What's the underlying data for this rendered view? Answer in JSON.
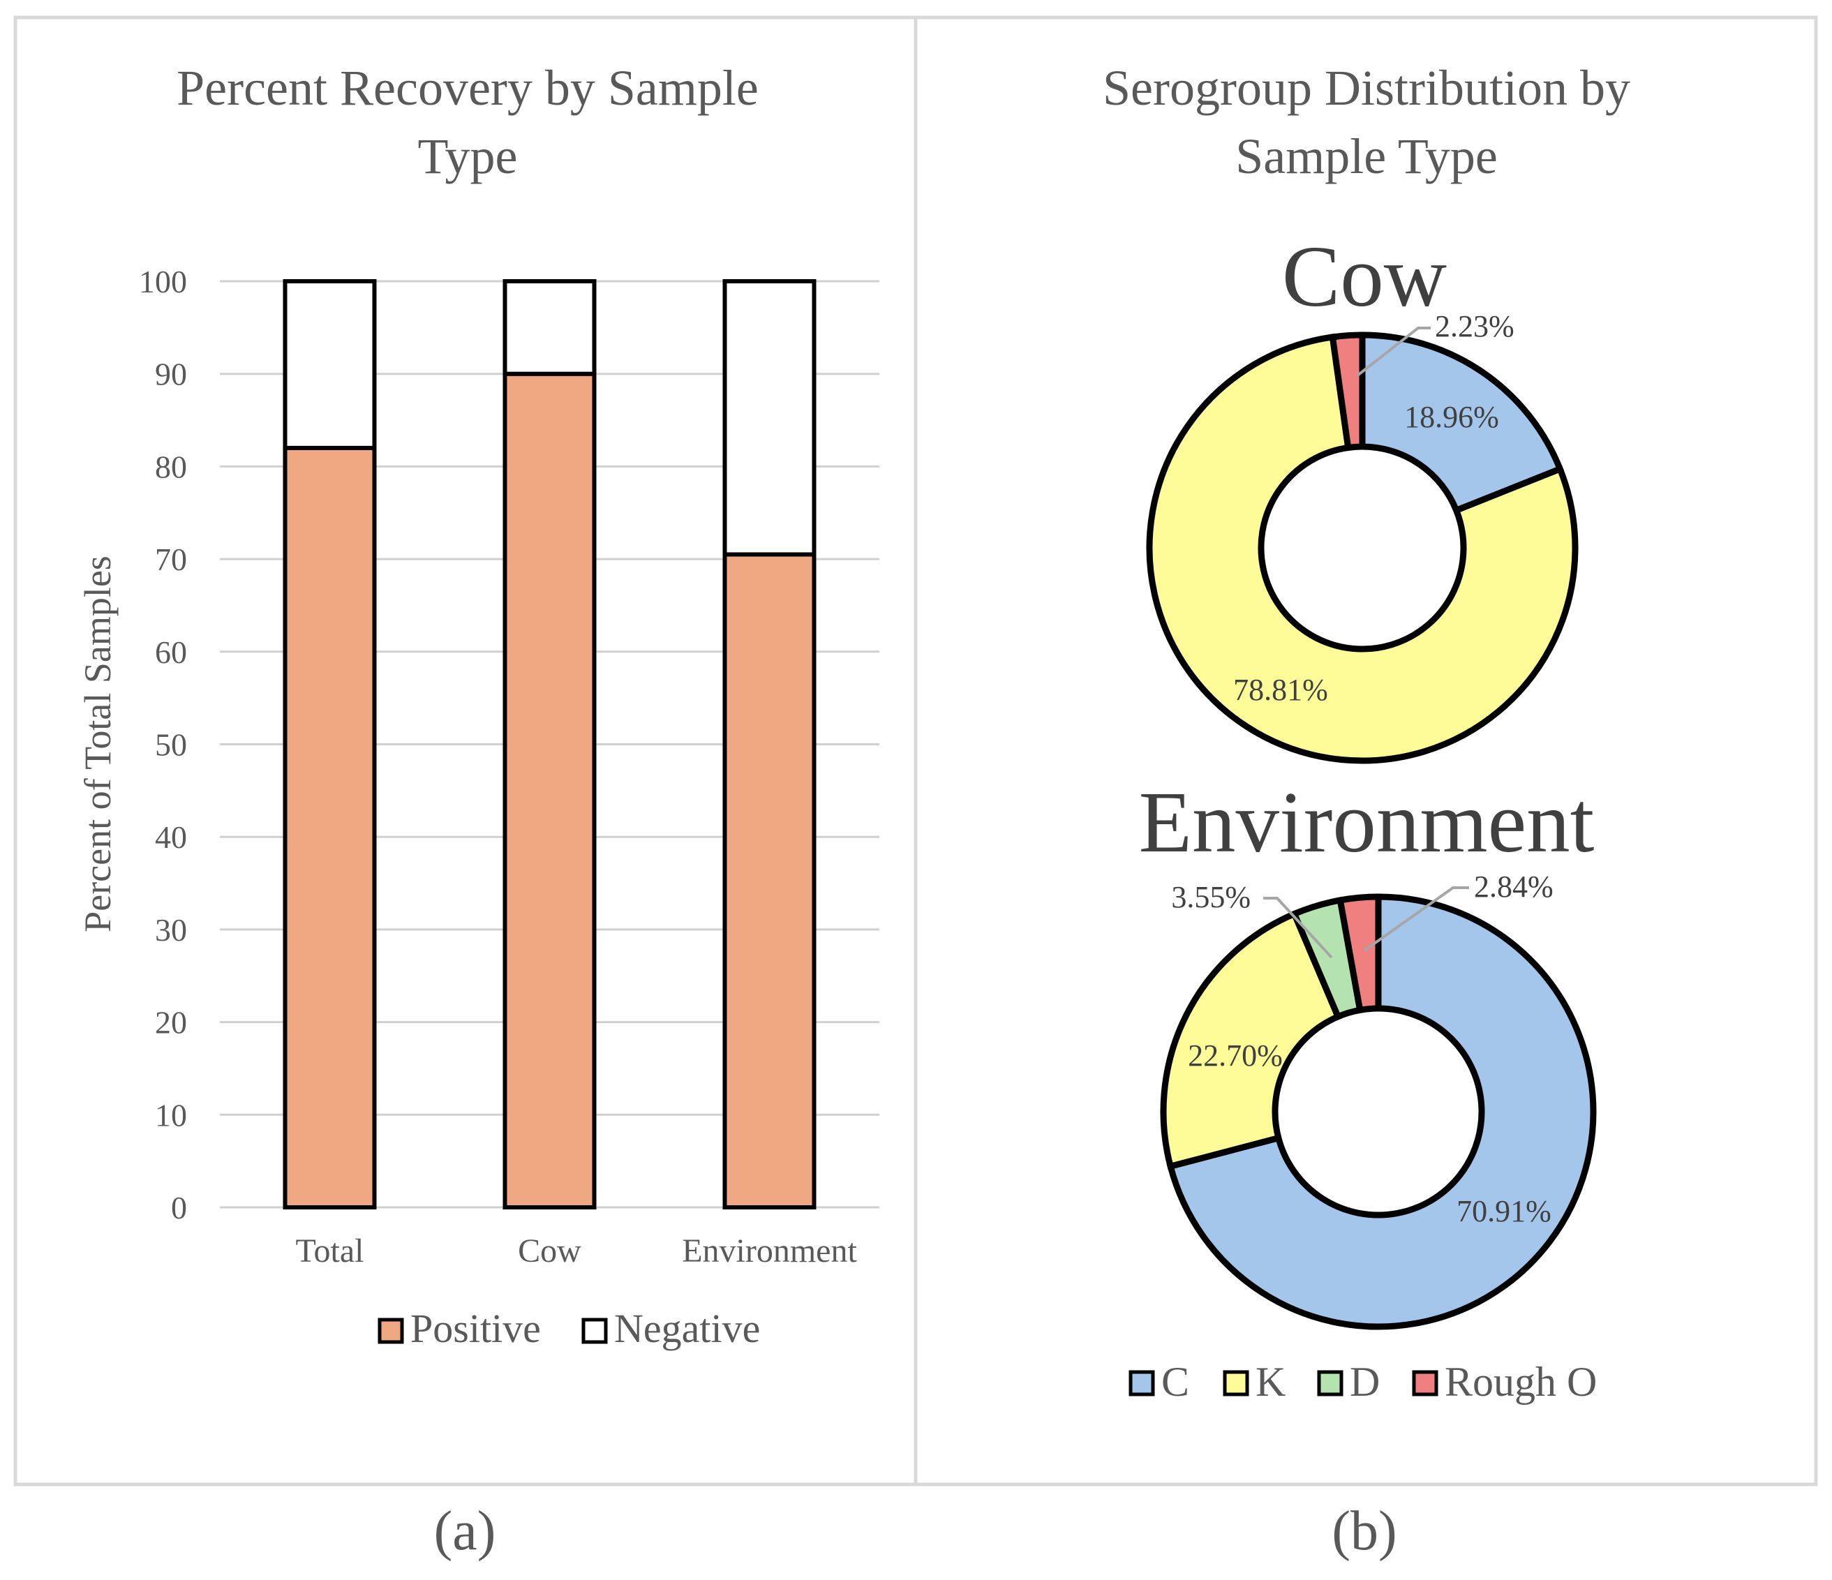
{
  "chart_data": [
    {
      "type": "bar",
      "stacked": true,
      "title": "Percent Recovery by Sample Type",
      "title_lines": [
        "Percent  Recovery  by  Sample",
        "Type"
      ],
      "xlabel": "",
      "ylabel": "Percent  of Total Samples",
      "ylim": [
        0,
        100
      ],
      "yticks": [
        0,
        10,
        20,
        30,
        40,
        50,
        60,
        70,
        80,
        90,
        100
      ],
      "grid": true,
      "categories": [
        "Total",
        "Cow",
        "Environment"
      ],
      "series": [
        {
          "name": "Positive",
          "color": "#f0a882",
          "values": [
            82,
            90,
            70.5
          ]
        },
        {
          "name": "Negative",
          "color": "#ffffff",
          "values": [
            18,
            10,
            29.5
          ]
        }
      ],
      "legend_position": "bottom",
      "panel_label": "(a)"
    },
    {
      "type": "pie",
      "variant": "donut",
      "title": "Serogroup Distribution by Sample Type",
      "title_lines": [
        "Serogroup  Distribution  by",
        "Sample  Type"
      ],
      "legend": [
        {
          "name": "C",
          "color": "#a4c6ea"
        },
        {
          "name": "K",
          "color": "#fdfc98"
        },
        {
          "name": "D",
          "color": "#b4e3b0"
        },
        {
          "name": "Rough O",
          "color": "#f08080"
        }
      ],
      "legend_position": "bottom",
      "charts": [
        {
          "name": "Cow",
          "slices": [
            {
              "label": "C",
              "value": 18.96,
              "data_label": "18.96%"
            },
            {
              "label": "K",
              "value": 78.81,
              "data_label": "78.81%"
            },
            {
              "label": "D",
              "value": 0,
              "data_label": ""
            },
            {
              "label": "Rough O",
              "value": 2.23,
              "data_label": "2.23%"
            }
          ]
        },
        {
          "name": "Environment",
          "slices": [
            {
              "label": "C",
              "value": 70.91,
              "data_label": "70.91%"
            },
            {
              "label": "K",
              "value": 22.7,
              "data_label": "22.70%"
            },
            {
              "label": "D",
              "value": 3.55,
              "data_label": "3.55%"
            },
            {
              "label": "Rough O",
              "value": 2.84,
              "data_label": "2.84%"
            }
          ]
        }
      ],
      "panel_label": "(b)"
    }
  ],
  "style": {
    "outline_color": "#000000",
    "border_color": "#d9d9d9",
    "grid_color": "#d0d0d0",
    "text_color": "#595959",
    "label_color": "#404040"
  }
}
